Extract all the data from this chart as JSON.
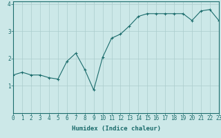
{
  "x": [
    0,
    1,
    2,
    3,
    4,
    5,
    6,
    7,
    8,
    9,
    10,
    11,
    12,
    13,
    14,
    15,
    16,
    17,
    18,
    19,
    20,
    21,
    22,
    23
  ],
  "y": [
    1.4,
    1.5,
    1.4,
    1.4,
    1.3,
    1.25,
    1.9,
    2.2,
    1.6,
    0.85,
    2.05,
    2.75,
    2.9,
    3.2,
    3.55,
    3.65,
    3.65,
    3.65,
    3.65,
    3.65,
    3.4,
    3.75,
    3.8,
    3.4
  ],
  "line_color": "#1a6b6b",
  "marker_color": "#1a6b6b",
  "bg_color": "#cce8e8",
  "grid_color": "#aacccc",
  "axis_color": "#1a6b6b",
  "xlabel": "Humidex (Indice chaleur)",
  "ylim": [
    0,
    4.1
  ],
  "xlim": [
    0,
    23
  ],
  "yticks": [
    1,
    2,
    3,
    4
  ],
  "xticks": [
    0,
    1,
    2,
    3,
    4,
    5,
    6,
    7,
    8,
    9,
    10,
    11,
    12,
    13,
    14,
    15,
    16,
    17,
    18,
    19,
    20,
    21,
    22,
    23
  ],
  "font_size": 5.5,
  "label_font_size": 6.5
}
